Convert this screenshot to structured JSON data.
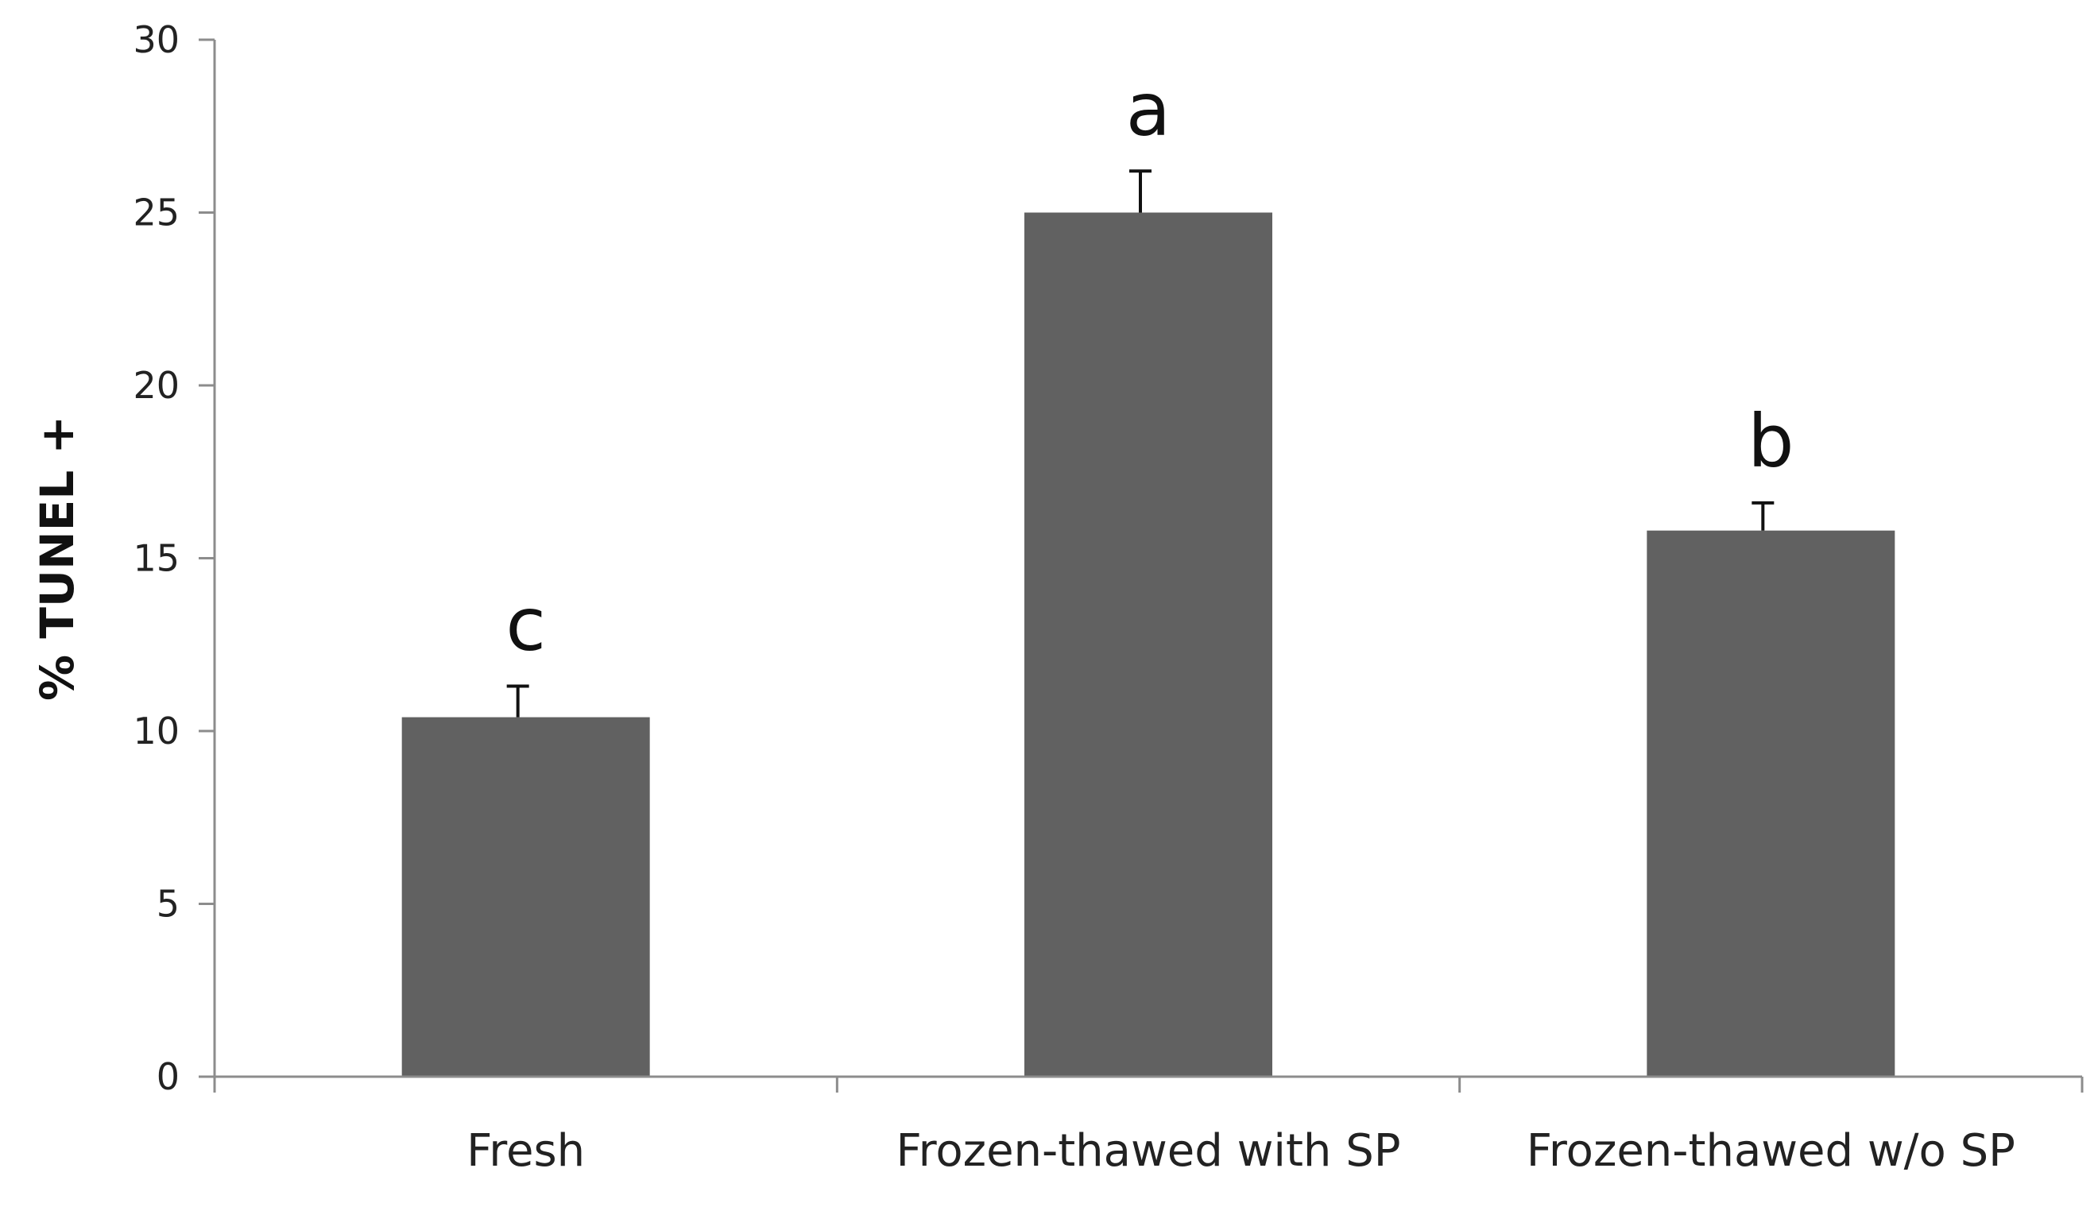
{
  "chart_data": {
    "type": "bar",
    "categories": [
      "Fresh",
      "Frozen-thawed with SP",
      "Frozen-thawed w/o SP"
    ],
    "values": [
      10.4,
      25.0,
      15.8
    ],
    "error_bars_upper": [
      0.9,
      1.2,
      0.8
    ],
    "significance_letters": [
      "c",
      "a",
      "b"
    ],
    "title": "",
    "xlabel": "",
    "ylabel": "% TUNEL +",
    "ylim": [
      0,
      30
    ],
    "yticks": [
      0,
      5,
      10,
      15,
      20,
      25,
      30
    ],
    "grid": false,
    "legend": "none",
    "colors": {
      "bar": "#616161",
      "axis": "#8c8c8c",
      "error_bar": "#111111",
      "text": "#222222"
    }
  }
}
